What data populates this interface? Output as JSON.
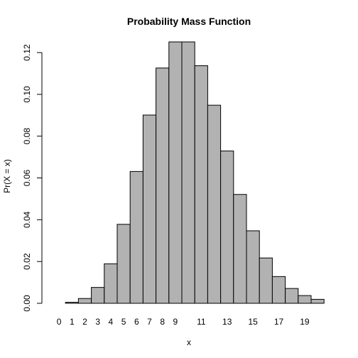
{
  "chart_data": {
    "type": "bar",
    "title": "Probability Mass Function",
    "xlabel": "x",
    "ylabel": "Pr(X = x)",
    "categories": [
      "0",
      "1",
      "2",
      "3",
      "4",
      "5",
      "6",
      "7",
      "8",
      "9",
      "10",
      "11",
      "12",
      "13",
      "14",
      "15",
      "16",
      "17",
      "18",
      "19",
      "20"
    ],
    "values": [
      0.0,
      0.0005,
      0.0023,
      0.0076,
      0.0189,
      0.0378,
      0.0631,
      0.0901,
      0.1126,
      0.1251,
      0.1251,
      0.1137,
      0.0948,
      0.0729,
      0.0521,
      0.0347,
      0.0217,
      0.0128,
      0.0071,
      0.0037,
      0.0019
    ],
    "x_tick_labels": [
      "0",
      "1",
      "2",
      "3",
      "4",
      "5",
      "6",
      "7",
      "8",
      "9",
      "11",
      "13",
      "15",
      "17",
      "19"
    ],
    "x_tick_positions": [
      0,
      1,
      2,
      3,
      4,
      5,
      6,
      7,
      8,
      9,
      11,
      13,
      15,
      17,
      19
    ],
    "y_ticks": [
      0.0,
      0.02,
      0.04,
      0.06,
      0.08,
      0.1,
      0.12
    ],
    "y_tick_labels": [
      "0.00",
      "0.02",
      "0.04",
      "0.06",
      "0.08",
      "0.10",
      "0.12"
    ],
    "ylim": [
      0,
      0.1251
    ],
    "grid": false,
    "legend": "none"
  }
}
